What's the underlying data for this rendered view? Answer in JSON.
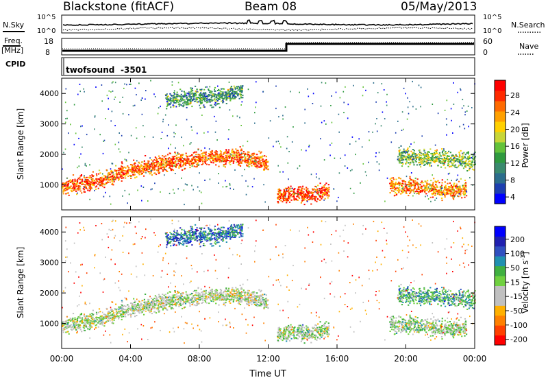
{
  "header": {
    "station": "Blackstone (fitACF)",
    "beam": "Beam 08",
    "date": "05/May/2013"
  },
  "noise_panel": {
    "left_label": "N.Sky",
    "right_label": "N.Search",
    "ticks": [
      "10^5",
      "10^0"
    ]
  },
  "freq_panel": {
    "label_line1": "Freq.",
    "label_line2": "[MHz]",
    "left_ticks": [
      "18",
      "8"
    ],
    "right_ticks": [
      "60",
      "0"
    ],
    "right_label": "Nave"
  },
  "cpid_panel": {
    "label": "CPID",
    "program": "twofsound",
    "id": "-3501"
  },
  "chart_data": [
    {
      "type": "heatmap",
      "title": "",
      "xlabel": "",
      "ylabel": "Slant Range [km]",
      "x_ticks": [
        "00:00",
        "04:00",
        "08:00",
        "12:00",
        "16:00",
        "20:00",
        "00:00"
      ],
      "xlim_hours": [
        0,
        24
      ],
      "y_ticks": [
        "1000",
        "2000",
        "3000",
        "4000"
      ],
      "ylim_km": [
        180,
        4500
      ],
      "colorbar": {
        "label": "Power [dB]",
        "ticks": [
          "28",
          "24",
          "20",
          "16",
          "12",
          "8",
          "4"
        ],
        "range": [
          0,
          30
        ],
        "colors": [
          "#0000ff",
          "#1d3fb0",
          "#2b6d8c",
          "#3a8a6e",
          "#2f9a3f",
          "#63c23a",
          "#c8d637",
          "#ffd000",
          "#ffa000",
          "#ff6a00",
          "#ff2a00",
          "#ff0000"
        ]
      },
      "features": [
        {
          "name": "main_band",
          "points_hours_km": [
            [
              0,
              950
            ],
            [
              2,
              1150
            ],
            [
              4,
              1500
            ],
            [
              6,
              1750
            ],
            [
              8,
              1900
            ],
            [
              10,
              1950
            ],
            [
              11.5,
              1800
            ],
            [
              12,
              1700
            ]
          ],
          "power_db": 24
        },
        {
          "name": "late_band",
          "points_hours_km": [
            [
              19.5,
              1950
            ],
            [
              21,
              1900
            ],
            [
              23,
              1850
            ],
            [
              24,
              1800
            ]
          ],
          "power_db": 14
        },
        {
          "name": "evening_low",
          "points_hours_km": [
            [
              19,
              1000
            ],
            [
              21,
              950
            ],
            [
              22.5,
              850
            ],
            [
              23.5,
              900
            ]
          ],
          "power_db": 22
        },
        {
          "name": "noon_patch",
          "points_hours_km": [
            [
              12.5,
              650
            ],
            [
              13.5,
              750
            ],
            [
              14.5,
              700
            ],
            [
              15.5,
              850
            ]
          ],
          "power_db": 26
        },
        {
          "name": "high_patch",
          "points_hours_km": [
            [
              6,
              3800
            ],
            [
              7.5,
              3900
            ],
            [
              9,
              3900
            ],
            [
              10.5,
              4100
            ]
          ],
          "power_db": 10
        }
      ]
    },
    {
      "type": "heatmap",
      "title": "",
      "xlabel": "Time UT",
      "ylabel": "Slant Range [km]",
      "x_ticks": [
        "00:00",
        "04:00",
        "08:00",
        "12:00",
        "16:00",
        "20:00",
        "00:00"
      ],
      "xlim_hours": [
        0,
        24
      ],
      "y_ticks": [
        "1000",
        "2000",
        "3000",
        "4000"
      ],
      "ylim_km": [
        180,
        4500
      ],
      "colorbar": {
        "label": "Velocity [m s^-1]",
        "ticks": [
          "200",
          "100",
          "50",
          "15",
          "-15",
          "-50",
          "-100",
          "-200"
        ],
        "range": [
          -250,
          250
        ],
        "colors": [
          "#ff0000",
          "#ff4000",
          "#ff8000",
          "#ffb000",
          "#c0c0c0",
          "#c0c0c0",
          "#70d040",
          "#40b040",
          "#2090b0",
          "#3050c0",
          "#2020b0",
          "#0000ff"
        ]
      },
      "features": [
        {
          "name": "main_band",
          "points_hours_km": [
            [
              0,
              950
            ],
            [
              2,
              1150
            ],
            [
              4,
              1500
            ],
            [
              6,
              1750
            ],
            [
              8,
              1900
            ],
            [
              10,
              1950
            ],
            [
              11.5,
              1800
            ],
            [
              12,
              1700
            ]
          ],
          "velocity": -20
        },
        {
          "name": "late_band",
          "points_hours_km": [
            [
              19.5,
              1950
            ],
            [
              21,
              1900
            ],
            [
              23,
              1850
            ],
            [
              24,
              1800
            ]
          ],
          "velocity": 60
        },
        {
          "name": "evening_low",
          "points_hours_km": [
            [
              19,
              1000
            ],
            [
              21,
              950
            ],
            [
              22.5,
              850
            ],
            [
              23.5,
              900
            ]
          ],
          "velocity": 0
        },
        {
          "name": "noon_patch",
          "points_hours_km": [
            [
              12.5,
              650
            ],
            [
              13.5,
              750
            ],
            [
              14.5,
              700
            ],
            [
              15.5,
              850
            ]
          ],
          "velocity": 0
        },
        {
          "name": "high_patch",
          "points_hours_km": [
            [
              6,
              3800
            ],
            [
              7.5,
              3900
            ],
            [
              9,
              3900
            ],
            [
              10.5,
              4100
            ]
          ],
          "velocity": 120
        }
      ]
    }
  ]
}
